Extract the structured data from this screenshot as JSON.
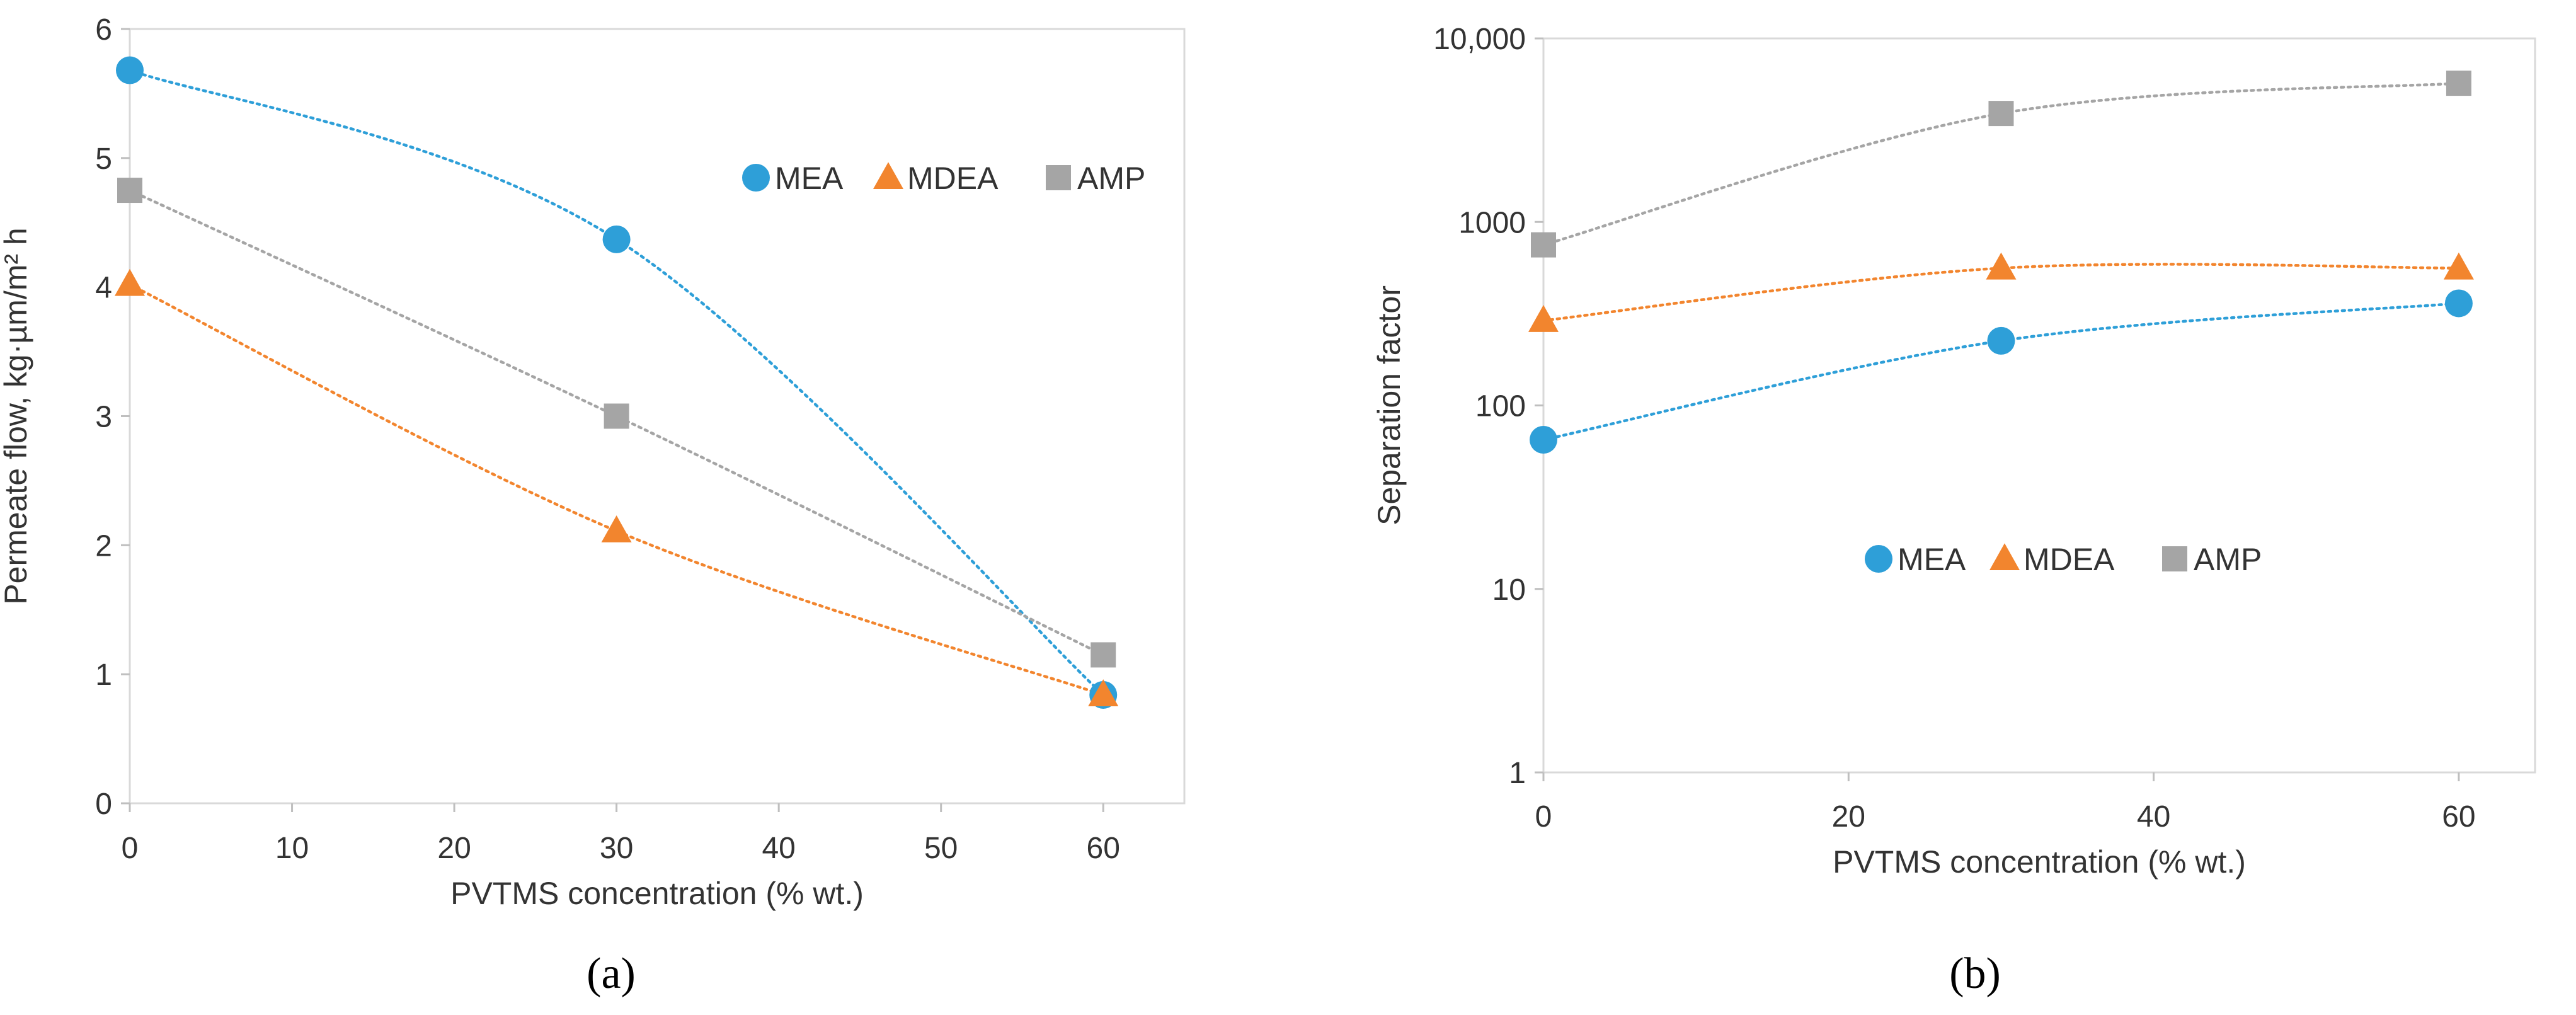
{
  "colors": {
    "MEA": "#2E9FD8",
    "MDEA": "#F2852E",
    "AMP": "#A5A5A5"
  },
  "chart_data": [
    {
      "id": "a",
      "type": "scatter",
      "caption": "(a)",
      "xlabel": "PVTMS concentration (% wt.)",
      "ylabel": "Permeate flow, kg·µm/m² h",
      "xlim": [
        0,
        65
      ],
      "ylim": [
        0,
        6
      ],
      "xticks": [
        0,
        10,
        20,
        30,
        40,
        50,
        60
      ],
      "xtick_labels": [
        "0",
        "10",
        "20",
        "30",
        "40",
        "50",
        "60"
      ],
      "yticks": [
        0,
        1,
        2,
        3,
        4,
        5,
        6
      ],
      "ytick_labels": [
        "0",
        "1",
        "2",
        "3",
        "4",
        "5",
        "6"
      ],
      "yscale": "linear",
      "grid": false,
      "legend": "top-right",
      "trendlines": "dotted",
      "series": [
        {
          "name": "MEA",
          "marker": "circle",
          "x": [
            0,
            30,
            60
          ],
          "y": [
            5.68,
            4.37,
            0.84
          ]
        },
        {
          "name": "MDEA",
          "marker": "triangle",
          "x": [
            0,
            30,
            60
          ],
          "y": [
            4.02,
            2.11,
            0.84
          ]
        },
        {
          "name": "AMP",
          "marker": "square",
          "x": [
            0,
            30,
            60
          ],
          "y": [
            4.75,
            3.0,
            1.15
          ]
        }
      ]
    },
    {
      "id": "b",
      "type": "scatter",
      "caption": "(b)",
      "xlabel": "PVTMS concentration (% wt.)",
      "ylabel": "Separation factor",
      "xlim": [
        0,
        65
      ],
      "ylim": [
        1,
        10000
      ],
      "xticks": [
        0,
        20,
        40,
        60
      ],
      "xtick_labels": [
        "0",
        "20",
        "40",
        "60"
      ],
      "yticks": [
        1,
        10,
        100,
        1000,
        10000
      ],
      "ytick_labels": [
        "1",
        "10",
        "100",
        "1000",
        "10,000"
      ],
      "yscale": "log",
      "grid": false,
      "legend": "center",
      "trendlines": "dotted",
      "series": [
        {
          "name": "MEA",
          "marker": "circle",
          "x": [
            0,
            30,
            60
          ],
          "y": [
            65,
            225,
            360
          ]
        },
        {
          "name": "MDEA",
          "marker": "triangle",
          "x": [
            0,
            30,
            60
          ],
          "y": [
            290,
            560,
            560
          ]
        },
        {
          "name": "AMP",
          "marker": "square",
          "x": [
            0,
            30,
            60
          ],
          "y": [
            750,
            3900,
            5700
          ]
        }
      ]
    }
  ]
}
